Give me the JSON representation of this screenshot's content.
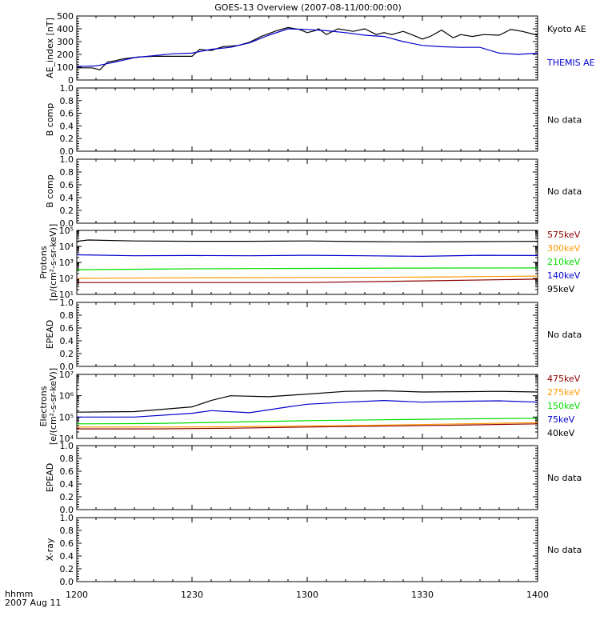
{
  "title": "GOES-13 Overview (2007-08-11/00:00:00)",
  "x_axis": {
    "ticks": [
      {
        "label": "1200",
        "minutes": 0
      },
      {
        "label": "1230",
        "minutes": 30
      },
      {
        "label": "1300",
        "minutes": 60
      },
      {
        "label": "1330",
        "minutes": 90
      },
      {
        "label": "1400",
        "minutes": 120
      }
    ],
    "corner_label_1": "hhmm",
    "corner_label_2": "2007 Aug 11"
  },
  "chart_data": [
    {
      "id": "ae",
      "type": "line",
      "ylabel": "AE_index [nT]",
      "ylim": [
        0,
        500
      ],
      "yticks": [
        "0",
        "100",
        "200",
        "300",
        "400",
        "500"
      ],
      "series": [
        {
          "name": "Kyoto AE",
          "color": "#000000",
          "x": [
            0,
            4,
            6,
            8,
            10,
            12,
            16,
            20,
            25,
            30,
            32,
            35,
            38,
            42,
            45,
            48,
            52,
            55,
            58,
            60,
            62,
            63,
            65,
            68,
            72,
            75,
            78,
            80,
            82,
            85,
            88,
            90,
            92,
            95,
            98,
            100,
            103,
            106,
            110,
            113,
            116,
            120
          ],
          "y": [
            95,
            95,
            80,
            140,
            150,
            165,
            180,
            185,
            185,
            185,
            240,
            230,
            260,
            270,
            295,
            340,
            385,
            410,
            395,
            370,
            385,
            400,
            355,
            400,
            380,
            400,
            355,
            370,
            355,
            380,
            345,
            320,
            340,
            390,
            330,
            355,
            340,
            355,
            350,
            395,
            380,
            350
          ]
        },
        {
          "name": "THEMIS AE",
          "color": "#0000cc",
          "x": [
            0,
            5,
            10,
            15,
            20,
            25,
            30,
            35,
            40,
            45,
            50,
            55,
            60,
            65,
            70,
            75,
            80,
            85,
            90,
            95,
            100,
            105,
            110,
            115,
            120
          ],
          "y": [
            105,
            110,
            140,
            175,
            190,
            205,
            210,
            240,
            255,
            290,
            350,
            400,
            395,
            385,
            370,
            350,
            340,
            300,
            270,
            260,
            255,
            255,
            210,
            200,
            210
          ]
        }
      ]
    },
    {
      "id": "b1",
      "type": "line",
      "ylabel": "B comp",
      "ylim": [
        0,
        1
      ],
      "yticks": [
        "0.0",
        "0.2",
        "0.4",
        "0.6",
        "0.8",
        "1.0"
      ],
      "status": "No data",
      "series": []
    },
    {
      "id": "b2",
      "type": "line",
      "ylabel": "B comp",
      "ylim": [
        0,
        1
      ],
      "yticks": [
        "0.0",
        "0.2",
        "0.4",
        "0.6",
        "0.8",
        "1.0"
      ],
      "status": "No data",
      "series": []
    },
    {
      "id": "protons",
      "type": "line",
      "scale": "log",
      "ylabel_line1": "Protons",
      "ylabel_line2": "[p/(cm²-s-sr-keV)]",
      "ylim": [
        10,
        100000
      ],
      "yticks": [
        "10¹",
        "10²",
        "10³",
        "10⁴",
        "10⁵"
      ],
      "series": [
        {
          "name": "575keV",
          "color": "#8b0000",
          "x": [
            0,
            30,
            60,
            90,
            120
          ],
          "y": [
            55,
            55,
            55,
            70,
            90
          ]
        },
        {
          "name": "300keV",
          "color": "#ff9900",
          "x": [
            0,
            30,
            60,
            90,
            120
          ],
          "y": [
            100,
            110,
            115,
            120,
            140
          ]
        },
        {
          "name": "210keV",
          "color": "#00dd00",
          "x": [
            0,
            30,
            60,
            90,
            120
          ],
          "y": [
            350,
            400,
            420,
            440,
            450
          ]
        },
        {
          "name": "140keV",
          "color": "#0000cc",
          "x": [
            0,
            15,
            30,
            45,
            60,
            75,
            90,
            105,
            120
          ],
          "y": [
            3000,
            2600,
            2700,
            2600,
            2800,
            2600,
            2400,
            2800,
            2700
          ]
        },
        {
          "name": "95keV",
          "color": "#000000",
          "x": [
            0,
            3,
            15,
            30,
            45,
            60,
            75,
            90,
            105,
            120
          ],
          "y": [
            21000,
            25000,
            22000,
            21000,
            21000,
            22000,
            20000,
            19000,
            20000,
            21000
          ]
        }
      ]
    },
    {
      "id": "epead1",
      "type": "line",
      "ylabel": "EPEAD",
      "ylim": [
        0,
        1
      ],
      "yticks": [
        "0.0",
        "0.2",
        "0.4",
        "0.6",
        "0.8",
        "1.0"
      ],
      "status": "No data",
      "series": []
    },
    {
      "id": "electrons",
      "type": "line",
      "scale": "log",
      "ylabel_line1": "Electrons",
      "ylabel_line2": "[e/(cm²-s-sr-keV)]",
      "ylim": [
        10000,
        10000000
      ],
      "yticks": [
        "10⁴",
        "10⁵",
        "10⁶",
        "10⁷"
      ],
      "series": [
        {
          "name": "475keV",
          "color": "#8b0000",
          "x": [
            0,
            20,
            40,
            60,
            80,
            100,
            120
          ],
          "y": [
            28000,
            28000,
            30000,
            34000,
            38000,
            42000,
            48000
          ]
        },
        {
          "name": "275keV",
          "color": "#ff9900",
          "x": [
            0,
            20,
            40,
            60,
            80,
            100,
            120
          ],
          "y": [
            34000,
            34000,
            35000,
            38000,
            42000,
            48000,
            55000
          ]
        },
        {
          "name": "150keV",
          "color": "#00dd00",
          "x": [
            0,
            20,
            40,
            60,
            80,
            100,
            120
          ],
          "y": [
            48000,
            50000,
            58000,
            68000,
            75000,
            82000,
            88000
          ]
        },
        {
          "name": "75keV",
          "color": "#0000cc",
          "x": [
            0,
            15,
            30,
            35,
            45,
            55,
            60,
            70,
            80,
            90,
            100,
            110,
            120
          ],
          "y": [
            100000,
            100000,
            150000,
            200000,
            160000,
            300000,
            400000,
            500000,
            600000,
            500000,
            550000,
            580000,
            500000
          ]
        },
        {
          "name": "40keV",
          "color": "#000000",
          "x": [
            0,
            15,
            30,
            35,
            40,
            50,
            60,
            70,
            80,
            90,
            100,
            110,
            120
          ],
          "y": [
            170000,
            180000,
            300000,
            600000,
            1000000,
            900000,
            1200000,
            1600000,
            1700000,
            1500000,
            1550000,
            1600000,
            1500000
          ]
        }
      ]
    },
    {
      "id": "epead2",
      "type": "line",
      "ylabel": "EPEAD",
      "ylim": [
        0,
        1
      ],
      "yticks": [
        "0.0",
        "0.2",
        "0.4",
        "0.6",
        "0.8",
        "1.0"
      ],
      "status": "No data",
      "series": []
    },
    {
      "id": "xray",
      "type": "line",
      "ylabel": "X-ray",
      "ylim": [
        0,
        1
      ],
      "yticks": [
        "0.0",
        "0.2",
        "0.4",
        "0.6",
        "0.8",
        "1.0"
      ],
      "status": "No data",
      "series": []
    }
  ]
}
